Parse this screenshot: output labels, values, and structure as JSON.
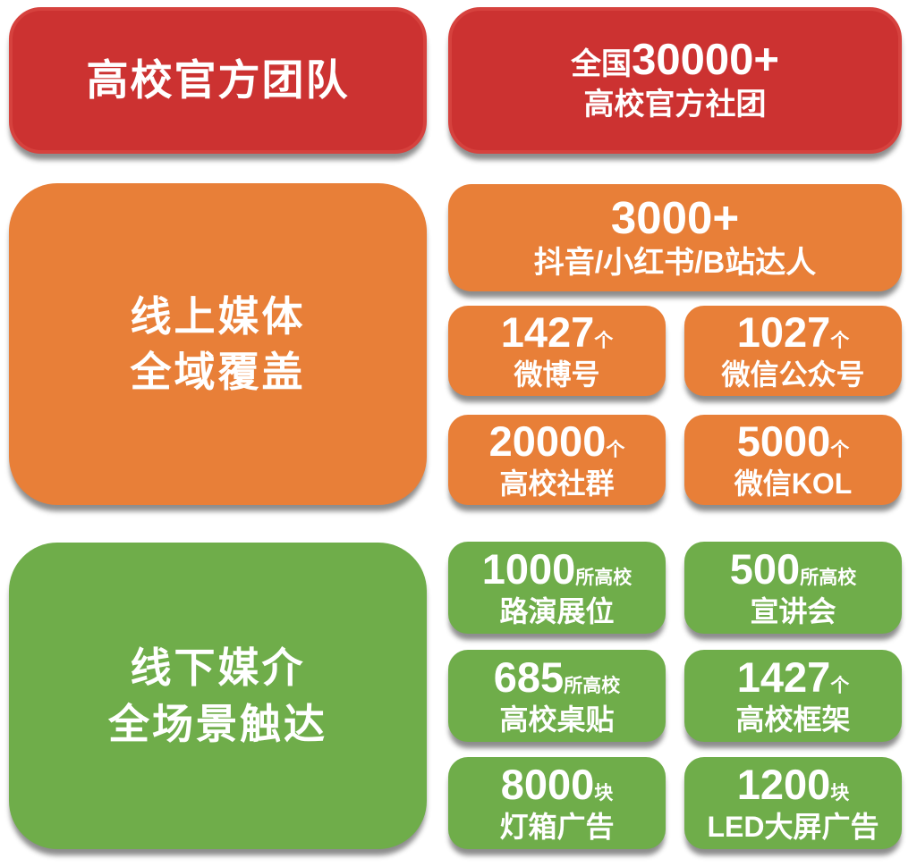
{
  "colors": {
    "red": "#cc3231",
    "red_border": "#d6423e",
    "orange": "#e87f38",
    "green": "#6fad4a",
    "text": "#ffffff",
    "background": "#ffffff"
  },
  "sections": {
    "official": {
      "title": "高校官方团队",
      "stat": {
        "prefix": "全国",
        "number": "30000+",
        "label": "高校官方社团"
      }
    },
    "online": {
      "title_line1": "线上媒体",
      "title_line2": "全域覆盖",
      "hero": {
        "number": "3000+",
        "label": "抖音/小红书/B站达人"
      },
      "stats": [
        {
          "number": "1427",
          "unit": "个",
          "label": "微博号"
        },
        {
          "number": "1027",
          "unit": "个",
          "label": "微信公众号"
        },
        {
          "number": "20000",
          "unit": "个",
          "label": "高校社群"
        },
        {
          "number": "5000",
          "unit": "个",
          "label": "微信KOL"
        }
      ]
    },
    "offline": {
      "title_line1": "线下媒介",
      "title_line2": "全场景触达",
      "stats": [
        {
          "number": "1000",
          "unit": "所高校",
          "label": "路演展位"
        },
        {
          "number": "500",
          "unit": "所高校",
          "label": "宣讲会"
        },
        {
          "number": "685",
          "unit": "所高校",
          "label": "高校桌贴"
        },
        {
          "number": "1427",
          "unit": "个",
          "label": "高校框架"
        },
        {
          "number": "8000",
          "unit": "块",
          "label": "灯箱广告"
        },
        {
          "number": "1200",
          "unit": "块",
          "label": "LED大屏广告"
        }
      ]
    }
  }
}
